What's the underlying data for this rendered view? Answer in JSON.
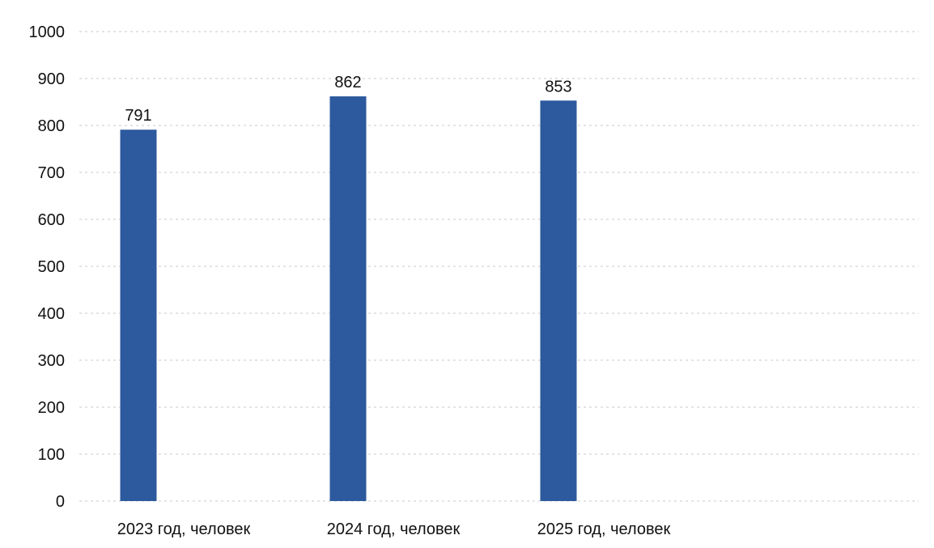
{
  "chart_data": {
    "type": "bar",
    "categories": [
      "2023 год, человек",
      "2024 год, человек",
      "2025 год, человек"
    ],
    "values": [
      791,
      862,
      853
    ],
    "data_labels": [
      "791",
      "862",
      "853"
    ],
    "title": "",
    "xlabel": "",
    "ylabel": "",
    "ylim": [
      0,
      1000
    ],
    "yticks": [
      0,
      100,
      200,
      300,
      400,
      500,
      600,
      700,
      800,
      900,
      1000
    ],
    "grid": true,
    "legend": "none"
  },
  "colors": {
    "bar": "#2d5a9e",
    "grid": "#c8c8c8",
    "text": "#111111"
  }
}
